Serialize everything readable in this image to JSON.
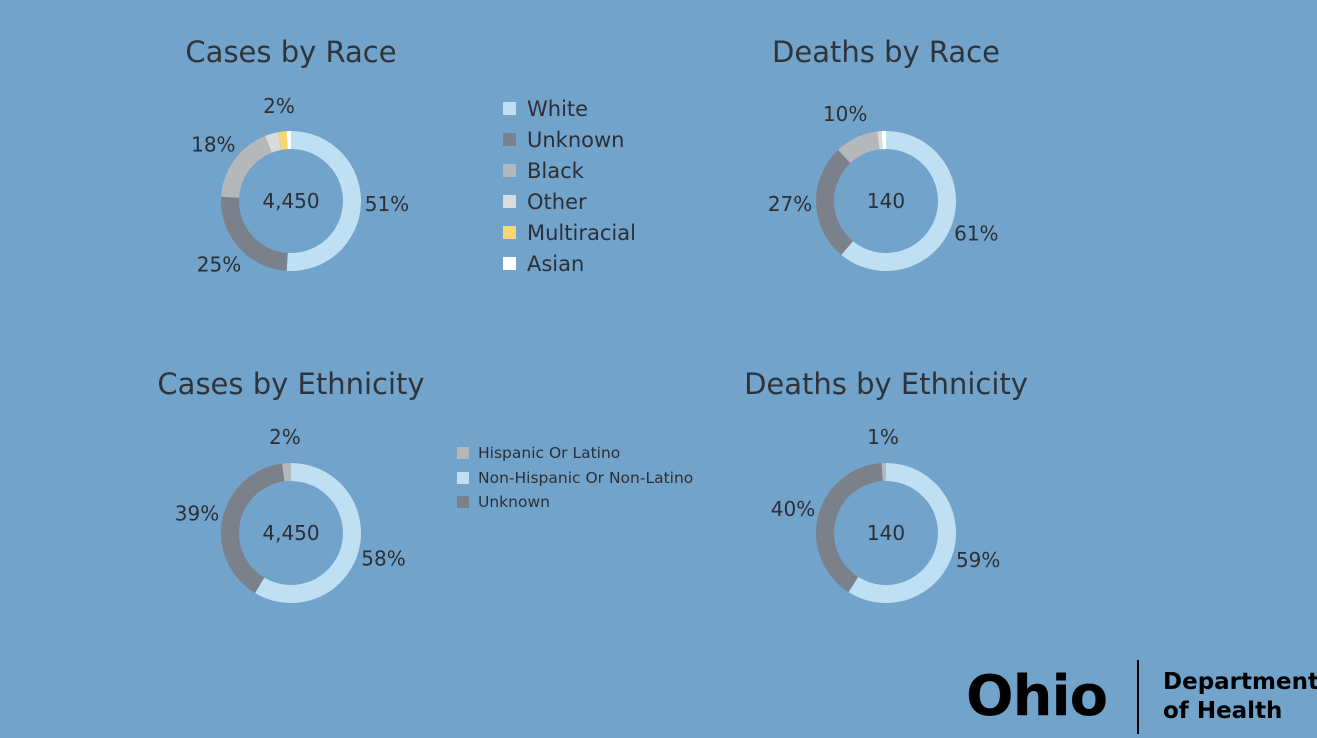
{
  "chart_data": [
    {
      "type": "pie",
      "title": "Cases by Race",
      "center_label": "4,450",
      "slices": [
        {
          "name": "White",
          "value": 51,
          "label": "51%"
        },
        {
          "name": "Unknown",
          "value": 25,
          "label": "25%"
        },
        {
          "name": "Black",
          "value": 18,
          "label": "18%"
        },
        {
          "name": "Other",
          "value": 3,
          "label": ""
        },
        {
          "name": "Multiracial",
          "value": 2,
          "label": "2%"
        },
        {
          "name": "Asian",
          "value": 1,
          "label": ""
        }
      ]
    },
    {
      "type": "pie",
      "title": "Deaths by Race",
      "center_label": "140",
      "slices": [
        {
          "name": "White",
          "value": 61,
          "label": "61%"
        },
        {
          "name": "Unknown",
          "value": 27,
          "label": "27%"
        },
        {
          "name": "Black",
          "value": 10,
          "label": "10%"
        },
        {
          "name": "Other",
          "value": 1,
          "label": ""
        },
        {
          "name": "Multiracial",
          "value": 0,
          "label": ""
        },
        {
          "name": "Asian",
          "value": 1,
          "label": ""
        }
      ]
    },
    {
      "type": "pie",
      "title": "Cases by Ethnicity",
      "center_label": "4,450",
      "slices": [
        {
          "name": "Non-Hispanic Or Non-Latino",
          "value": 58,
          "label": "58%"
        },
        {
          "name": "Unknown",
          "value": 39,
          "label": "39%"
        },
        {
          "name": "Hispanic Or Latino",
          "value": 2,
          "label": "2%"
        }
      ]
    },
    {
      "type": "pie",
      "title": "Deaths by Ethnicity",
      "center_label": "140",
      "slices": [
        {
          "name": "Non-Hispanic Or Non-Latino",
          "value": 59,
          "label": "59%"
        },
        {
          "name": "Unknown",
          "value": 40,
          "label": "40%"
        },
        {
          "name": "Hispanic Or Latino",
          "value": 1,
          "label": "1%"
        }
      ]
    }
  ],
  "colors": {
    "White": "#bfdff3",
    "Unknown": "#7a818b",
    "Black": "#b4b8bb",
    "Other": "#d9dbdc",
    "Multiracial": "#f8d674",
    "Asian": "#ffffff",
    "Non-Hispanic Or Non-Latino": "#bfdff3",
    "Hispanic Or Latino": "#b4b8bb",
    "background": "#72a3cb"
  },
  "legends": {
    "race": [
      "White",
      "Unknown",
      "Black",
      "Other",
      "Multiracial",
      "Asian"
    ],
    "ethnicity": [
      "Hispanic Or Latino",
      "Non-Hispanic Or Non-Latino",
      "Unknown"
    ]
  },
  "logo": {
    "name": "Ohio",
    "line1": "Department",
    "line2": "of Health"
  }
}
